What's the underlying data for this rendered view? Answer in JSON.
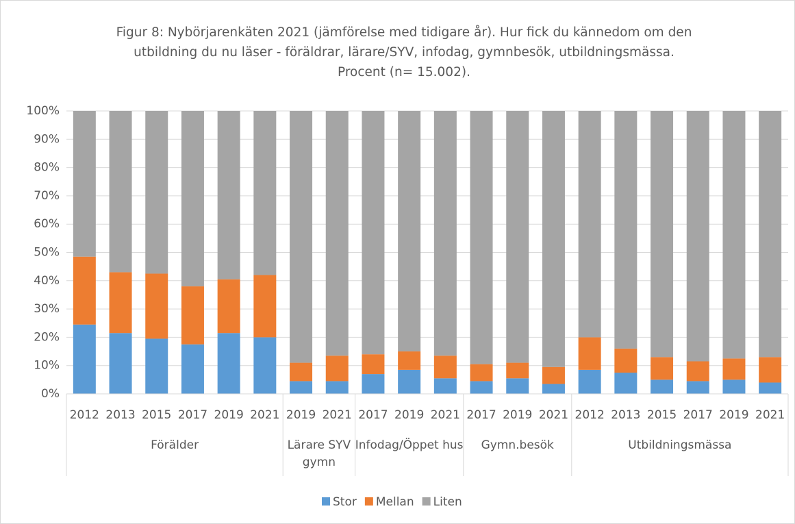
{
  "chart_data": {
    "type": "stacked-bar",
    "title": "Figur 8: Nybörjarenkäten 2021 (jämförelse med tidigare år). Hur fick du kännedom om den utbildning du nu läser - föräldrar, lärare/SYV, infodag, gymnbesök, utbildningsmässa. Procent (n= 15.002).",
    "groups": [
      {
        "name": "Förälder",
        "categories": [
          "2012",
          "2013",
          "2015",
          "2017",
          "2019",
          "2021"
        ]
      },
      {
        "name": "Lärare SYV gymn",
        "categories": [
          "2019",
          "2021"
        ]
      },
      {
        "name": "Infodag/Öppet hus",
        "categories": [
          "2017",
          "2019",
          "2021"
        ]
      },
      {
        "name": "Gymn.besök",
        "categories": [
          "2017",
          "2019",
          "2021"
        ]
      },
      {
        "name": "Utbildningsmässa",
        "categories": [
          "2012",
          "2013",
          "2015",
          "2017",
          "2019",
          "2021"
        ]
      }
    ],
    "series": [
      {
        "name": "Stor",
        "color": "#5b9bd5",
        "values": [
          24.5,
          21.5,
          19.5,
          17.5,
          21.5,
          20,
          4.5,
          4.5,
          7,
          8.5,
          5.5,
          4.5,
          5.5,
          3.5,
          8.5,
          7.5,
          5,
          4.5,
          5,
          4
        ]
      },
      {
        "name": "Mellan",
        "color": "#ed7d31",
        "values": [
          24,
          21.5,
          23,
          20.5,
          19,
          22,
          6.5,
          9,
          7,
          6.5,
          8,
          6,
          5.5,
          6,
          11.5,
          8.5,
          8,
          7,
          7.5,
          9
        ]
      },
      {
        "name": "Liten",
        "color": "#a5a5a5",
        "values": [
          51.5,
          57,
          57.5,
          62,
          59.5,
          58,
          89,
          86.5,
          86,
          85,
          86.5,
          89.5,
          89,
          90.5,
          80,
          84,
          87,
          88.5,
          87.5,
          87
        ]
      }
    ],
    "ylim": [
      0,
      100
    ],
    "yticks": [
      {
        "value": 0,
        "label": "0%"
      },
      {
        "value": 10,
        "label": "10%"
      },
      {
        "value": 20,
        "label": "20%"
      },
      {
        "value": 30,
        "label": "30%"
      },
      {
        "value": 40,
        "label": "40%"
      },
      {
        "value": 50,
        "label": "50%"
      },
      {
        "value": 60,
        "label": "60%"
      },
      {
        "value": 70,
        "label": "70%"
      },
      {
        "value": 80,
        "label": "80%"
      },
      {
        "value": 90,
        "label": "90%"
      },
      {
        "value": 100,
        "label": "100%"
      }
    ],
    "grid": true,
    "legend": "bottom"
  }
}
